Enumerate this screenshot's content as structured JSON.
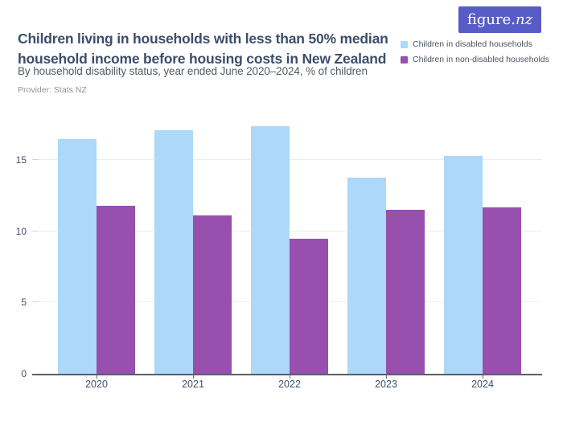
{
  "header": {
    "title": "Children living in households with less than 50% median household income before housing costs in New Zealand",
    "subtitle": "By household disability status, year ended June 2020–2024, % of children",
    "provider": "Provider: Stats NZ",
    "logo_text": "figure.nz"
  },
  "colors": {
    "title": "#3D4E6B",
    "subtitle": "#515A64",
    "provider": "#8E9398",
    "logo_bg": "#575CC6",
    "logo_text": "#FFFFFF",
    "legend_text": "#4C545E",
    "axis_label": "#3F4F6E",
    "gridline": "#EDEDEF",
    "tick_stub": "#D4D4D8",
    "axis_line": "#5A5E66",
    "x_tick": "#6A707A",
    "series_disabled": "#ACD8F9",
    "series_non_disabled": "#9750AE"
  },
  "chart_data": {
    "type": "bar",
    "title": "Children living in households with less than 50% median household income before housing costs in New Zealand",
    "subtitle": "By household disability status, year ended June 2020–2024, % of children",
    "categories": [
      "2020",
      "2021",
      "2022",
      "2023",
      "2024"
    ],
    "series": [
      {
        "name": "Children in disabled households",
        "color": "#ACD8F9",
        "values": [
          16.5,
          17.1,
          17.4,
          13.8,
          15.3
        ]
      },
      {
        "name": "Children in non-disabled households",
        "color": "#9750AE",
        "values": [
          11.8,
          11.1,
          9.5,
          11.5,
          11.7
        ]
      }
    ],
    "xlabel": "",
    "ylabel": "",
    "value_unit": "% of children",
    "ylim": [
      0,
      17.5
    ],
    "yticks": [
      0,
      5,
      10,
      15
    ],
    "grid": true,
    "legend_position": "top-right"
  }
}
